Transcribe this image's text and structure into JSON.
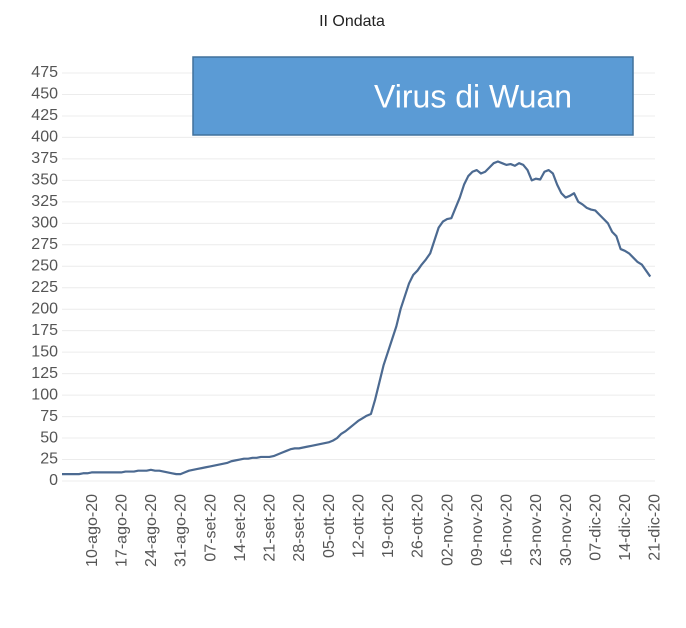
{
  "chart_data": {
    "type": "line",
    "title": "II Ondata",
    "annotation": "Virus di Wuan",
    "color": "#4c6a91",
    "grid": true,
    "ylim": [
      0,
      475
    ],
    "yticks": [
      0,
      25,
      50,
      75,
      100,
      125,
      150,
      175,
      200,
      225,
      250,
      275,
      300,
      325,
      350,
      375,
      400,
      425,
      450,
      475
    ],
    "categories": [
      null,
      null,
      null,
      null,
      null,
      null,
      null,
      "10-ago-20",
      null,
      null,
      null,
      null,
      null,
      null,
      "17-ago-20",
      null,
      null,
      null,
      null,
      null,
      null,
      "24-ago-20",
      null,
      null,
      null,
      null,
      null,
      null,
      "31-ago-20",
      null,
      null,
      null,
      null,
      null,
      null,
      "07-set-20",
      null,
      null,
      null,
      null,
      null,
      null,
      "14-set-20",
      null,
      null,
      null,
      null,
      null,
      null,
      "21-set-20",
      null,
      null,
      null,
      null,
      null,
      null,
      "28-set-20",
      null,
      null,
      null,
      null,
      null,
      null,
      "05-ott-20",
      null,
      null,
      null,
      null,
      null,
      null,
      "12-ott-20",
      null,
      null,
      null,
      null,
      null,
      null,
      "19-ott-20",
      null,
      null,
      null,
      null,
      null,
      null,
      "26-ott-20",
      null,
      null,
      null,
      null,
      null,
      null,
      "02-nov-20",
      null,
      null,
      null,
      null,
      null,
      null,
      "09-nov-20",
      null,
      null,
      null,
      null,
      null,
      null,
      "16-nov-20",
      null,
      null,
      null,
      null,
      null,
      null,
      "23-nov-20",
      null,
      null,
      null,
      null,
      null,
      null,
      "30-nov-20",
      null,
      null,
      null,
      null,
      null,
      null,
      "07-dic-20",
      null,
      null,
      null,
      null,
      null,
      null,
      "14-dic-20",
      null,
      null,
      null,
      null,
      null,
      null,
      "21-dic-20"
    ],
    "values": [
      8,
      8,
      8,
      8,
      8,
      9,
      9,
      10,
      10,
      10,
      10,
      10,
      10,
      10,
      10,
      11,
      11,
      11,
      12,
      12,
      12,
      13,
      12,
      12,
      11,
      10,
      9,
      8,
      8,
      10,
      12,
      13,
      14,
      15,
      16,
      17,
      18,
      19,
      20,
      21,
      23,
      24,
      25,
      26,
      26,
      27,
      27,
      28,
      28,
      28,
      29,
      31,
      33,
      35,
      37,
      38,
      38,
      39,
      40,
      41,
      42,
      43,
      44,
      45,
      47,
      50,
      55,
      58,
      62,
      66,
      70,
      73,
      76,
      78,
      95,
      115,
      135,
      150,
      165,
      180,
      200,
      215,
      230,
      240,
      245,
      252,
      258,
      265,
      280,
      295,
      302,
      305,
      306,
      318,
      330,
      345,
      355,
      360,
      362,
      358,
      360,
      365,
      370,
      372,
      370,
      368,
      369,
      367,
      370,
      368,
      362,
      350,
      352,
      351,
      360,
      362,
      358,
      345,
      335,
      330,
      332,
      335,
      325,
      322,
      318,
      316,
      315,
      310,
      305,
      300,
      290,
      285,
      270,
      268,
      265,
      260,
      255,
      252,
      245,
      238,
      null
    ]
  }
}
